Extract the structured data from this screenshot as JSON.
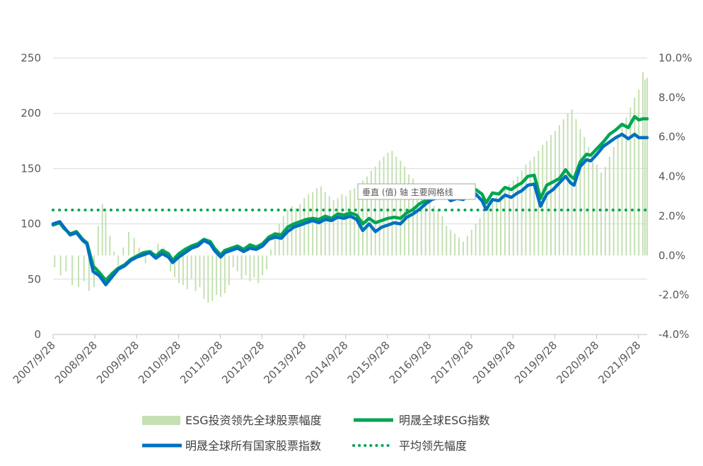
{
  "chart_data": {
    "type": "line",
    "title": "",
    "xlabel": "",
    "ylabel": "",
    "y_left": {
      "min": 0,
      "max": 250,
      "ticks": [
        0,
        50,
        100,
        150,
        200,
        250
      ],
      "tick_labels": [
        "0",
        "50",
        "100",
        "150",
        "200",
        "250"
      ]
    },
    "y_right": {
      "min": -4.0,
      "max": 10.0,
      "ticks": [
        -4,
        -2,
        0,
        2,
        4,
        6,
        8,
        10
      ],
      "tick_labels": [
        "-4.0%",
        "-2.0%",
        "0.0%",
        "2.0%",
        "4.0%",
        "6.0%",
        "8.0%",
        "10.0%"
      ]
    },
    "x_tick_labels": [
      "2007/9/28",
      "2008/9/28",
      "2009/9/28",
      "2010/9/28",
      "2011/9/28",
      "2012/9/28",
      "2013/9/28",
      "2014/9/28",
      "2015/9/28",
      "2016/9/28",
      "2017/9/28",
      "2018/9/28",
      "2019/9/28",
      "2020/9/28",
      "2021/9/28"
    ],
    "x_tick_years": [
      2007.74,
      2008.74,
      2009.74,
      2010.74,
      2011.74,
      2012.74,
      2013.74,
      2014.74,
      2015.74,
      2016.74,
      2017.74,
      2018.74,
      2019.74,
      2020.74,
      2021.74
    ],
    "x_range": [
      2007.74,
      2021.95
    ],
    "grid": true,
    "legend_position": "bottom",
    "colors": {
      "esg": "#00a651",
      "all": "#0070c0",
      "bars": "#c5e0b4",
      "avg": "#00a651",
      "grid": "#d9d9d9",
      "axis": "#bfbfbf"
    },
    "esg_index": {
      "name": "明晟全球ESG指数",
      "x": [
        2007.74,
        2007.9,
        2008.0,
        2008.15,
        2008.3,
        2008.45,
        2008.55,
        2008.7,
        2008.85,
        2009.0,
        2009.15,
        2009.3,
        2009.45,
        2009.6,
        2009.75,
        2009.9,
        2010.05,
        2010.2,
        2010.35,
        2010.5,
        2010.6,
        2010.75,
        2010.9,
        2011.05,
        2011.2,
        2011.35,
        2011.5,
        2011.6,
        2011.75,
        2011.85,
        2012.0,
        2012.15,
        2012.3,
        2012.45,
        2012.6,
        2012.75,
        2012.9,
        2013.05,
        2013.2,
        2013.35,
        2013.5,
        2013.65,
        2013.8,
        2013.95,
        2014.1,
        2014.25,
        2014.4,
        2014.55,
        2014.7,
        2014.85,
        2015.0,
        2015.15,
        2015.3,
        2015.45,
        2015.6,
        2015.75,
        2015.9,
        2016.05,
        2016.2,
        2016.35,
        2016.5,
        2016.65,
        2016.8,
        2016.95,
        2017.1,
        2017.25,
        2017.4,
        2017.55,
        2017.7,
        2017.85,
        2018.0,
        2018.1,
        2018.25,
        2018.4,
        2018.55,
        2018.7,
        2018.85,
        2018.95,
        2019.1,
        2019.25,
        2019.4,
        2019.55,
        2019.7,
        2019.85,
        2020.0,
        2020.12,
        2020.2,
        2020.35,
        2020.5,
        2020.6,
        2020.75,
        2020.9,
        2021.05,
        2021.2,
        2021.35,
        2021.5,
        2021.65,
        2021.75,
        2021.85,
        2021.95
      ],
      "values": [
        99,
        101,
        96,
        91,
        93,
        86,
        83,
        62,
        56,
        49,
        55,
        60,
        63,
        68,
        71,
        74,
        75,
        71,
        76,
        73,
        67,
        73,
        77,
        80,
        82,
        86,
        84,
        78,
        72,
        76,
        78,
        80,
        77,
        81,
        79,
        82,
        88,
        91,
        90,
        97,
        100,
        102,
        104,
        105,
        104,
        107,
        105,
        109,
        108,
        110,
        108,
        100,
        105,
        101,
        103,
        105,
        106,
        105,
        110,
        113,
        118,
        121,
        126,
        128,
        131,
        125,
        127,
        126,
        130,
        131,
        127,
        119,
        128,
        127,
        133,
        131,
        135,
        137,
        143,
        144,
        123,
        135,
        138,
        141,
        149,
        143,
        141,
        156,
        163,
        162,
        168,
        174,
        181,
        185,
        190,
        187,
        197,
        194,
        195,
        195
      ]
    },
    "all_country_index": {
      "name": "明晟全球所有国家股票指数",
      "x": [
        2007.74,
        2007.9,
        2008.0,
        2008.15,
        2008.3,
        2008.45,
        2008.55,
        2008.7,
        2008.85,
        2009.0,
        2009.15,
        2009.3,
        2009.45,
        2009.6,
        2009.75,
        2009.9,
        2010.05,
        2010.2,
        2010.35,
        2010.5,
        2010.6,
        2010.75,
        2010.9,
        2011.05,
        2011.2,
        2011.35,
        2011.5,
        2011.6,
        2011.75,
        2011.85,
        2012.0,
        2012.15,
        2012.3,
        2012.45,
        2012.6,
        2012.75,
        2012.9,
        2013.05,
        2013.2,
        2013.35,
        2013.5,
        2013.65,
        2013.8,
        2013.95,
        2014.1,
        2014.25,
        2014.4,
        2014.55,
        2014.7,
        2014.85,
        2015.0,
        2015.15,
        2015.3,
        2015.45,
        2015.6,
        2015.75,
        2015.9,
        2016.05,
        2016.2,
        2016.35,
        2016.5,
        2016.65,
        2016.8,
        2016.95,
        2017.1,
        2017.25,
        2017.4,
        2017.55,
        2017.7,
        2017.85,
        2018.0,
        2018.1,
        2018.25,
        2018.4,
        2018.55,
        2018.7,
        2018.85,
        2018.95,
        2019.1,
        2019.25,
        2019.4,
        2019.55,
        2019.7,
        2019.85,
        2020.0,
        2020.12,
        2020.2,
        2020.35,
        2020.5,
        2020.6,
        2020.75,
        2020.9,
        2021.05,
        2021.2,
        2021.35,
        2021.5,
        2021.65,
        2021.75,
        2021.85,
        2021.95
      ],
      "values": [
        100,
        102,
        97,
        90,
        92,
        85,
        82,
        57,
        53,
        45,
        52,
        59,
        62,
        67,
        70,
        72,
        74,
        69,
        73,
        70,
        65,
        70,
        74,
        78,
        80,
        85,
        82,
        76,
        70,
        74,
        76,
        78,
        75,
        78,
        77,
        80,
        86,
        88,
        87,
        93,
        97,
        99,
        101,
        103,
        101,
        104,
        103,
        106,
        105,
        107,
        104,
        94,
        100,
        93,
        97,
        99,
        101,
        100,
        106,
        109,
        113,
        118,
        122,
        124,
        127,
        121,
        123,
        122,
        126,
        127,
        121,
        113,
        122,
        121,
        126,
        124,
        128,
        130,
        135,
        136,
        116,
        127,
        131,
        137,
        143,
        137,
        135,
        152,
        158,
        157,
        163,
        170,
        174,
        178,
        181,
        177,
        181,
        178,
        178,
        178
      ]
    },
    "avg_lead": {
      "name": "平均领先幅度",
      "value": 2.3
    },
    "lead_bars": {
      "name": "ESG投资领先全球股票幅度",
      "x": [
        2007.78,
        2007.92,
        2008.05,
        2008.2,
        2008.35,
        2008.48,
        2008.6,
        2008.72,
        2008.82,
        2008.92,
        2009.0,
        2009.1,
        2009.2,
        2009.3,
        2009.42,
        2009.55,
        2009.68,
        2009.8,
        2009.95,
        2010.1,
        2010.25,
        2010.4,
        2010.55,
        2010.65,
        2010.75,
        2010.85,
        2010.95,
        2011.05,
        2011.15,
        2011.25,
        2011.35,
        2011.45,
        2011.55,
        2011.65,
        2011.75,
        2011.85,
        2011.95,
        2012.05,
        2012.15,
        2012.25,
        2012.35,
        2012.45,
        2012.55,
        2012.65,
        2012.75,
        2012.85,
        2012.95,
        2013.05,
        2013.15,
        2013.25,
        2013.35,
        2013.45,
        2013.55,
        2013.65,
        2013.75,
        2013.85,
        2013.95,
        2014.05,
        2014.15,
        2014.25,
        2014.35,
        2014.45,
        2014.55,
        2014.65,
        2014.75,
        2014.85,
        2014.95,
        2015.05,
        2015.15,
        2015.25,
        2015.35,
        2015.45,
        2015.55,
        2015.65,
        2015.75,
        2015.85,
        2015.95,
        2016.05,
        2016.15,
        2016.25,
        2016.35,
        2016.45,
        2016.55,
        2016.65,
        2016.75,
        2016.85,
        2016.95,
        2017.05,
        2017.15,
        2017.25,
        2017.35,
        2017.45,
        2017.55,
        2017.65,
        2017.75,
        2017.85,
        2017.95,
        2018.05,
        2018.15,
        2018.25,
        2018.35,
        2018.45,
        2018.55,
        2018.65,
        2018.75,
        2018.85,
        2018.95,
        2019.05,
        2019.15,
        2019.25,
        2019.35,
        2019.45,
        2019.55,
        2019.65,
        2019.75,
        2019.85,
        2019.95,
        2020.05,
        2020.15,
        2020.25,
        2020.35,
        2020.45,
        2020.55,
        2020.65,
        2020.75,
        2020.85,
        2020.95,
        2021.05,
        2021.15,
        2021.25,
        2021.35,
        2021.45,
        2021.55,
        2021.65,
        2021.75,
        2021.85,
        2021.9,
        2021.95
      ],
      "values": [
        -0.6,
        -1.0,
        -0.8,
        -1.5,
        -1.6,
        -1.3,
        -1.8,
        -1.6,
        1.5,
        2.6,
        2.2,
        1.0,
        0.2,
        -0.5,
        0.4,
        1.2,
        0.9,
        0.4,
        -0.4,
        0.3,
        0.6,
        0.4,
        -0.8,
        -1.1,
        -1.4,
        -1.5,
        -1.7,
        -1.2,
        -1.8,
        -1.6,
        -2.2,
        -2.4,
        -2.3,
        -2.0,
        -2.1,
        -1.9,
        -1.5,
        -0.6,
        -0.8,
        -1.2,
        -1.0,
        -1.3,
        -1.1,
        -1.4,
        -1.0,
        -0.7,
        0.3,
        1.2,
        1.6,
        2.0,
        2.3,
        2.5,
        2.4,
        2.6,
        2.9,
        3.1,
        3.2,
        3.4,
        3.5,
        3.2,
        3.0,
        2.8,
        2.9,
        3.1,
        3.0,
        3.3,
        3.4,
        3.6,
        3.8,
        4.0,
        4.3,
        4.5,
        4.8,
        5.0,
        5.2,
        5.3,
        5.0,
        4.8,
        4.5,
        4.1,
        3.9,
        3.6,
        3.3,
        3.0,
        2.7,
        2.5,
        2.3,
        2.0,
        1.5,
        1.3,
        1.1,
        0.9,
        0.7,
        1.0,
        1.3,
        1.6,
        1.9,
        2.2,
        2.5,
        2.8,
        3.0,
        3.2,
        3.4,
        3.6,
        3.8,
        4.0,
        4.3,
        4.6,
        4.8,
        5.0,
        5.3,
        5.6,
        5.8,
        6.1,
        6.3,
        6.6,
        6.9,
        7.2,
        7.4,
        6.9,
        6.4,
        6.0,
        5.5,
        5.0,
        4.6,
        4.2,
        4.5,
        5.0,
        5.5,
        6.0,
        6.5,
        7.0,
        7.5,
        8.0,
        8.4,
        9.3,
        8.9,
        9.0
      ]
    },
    "legend": [
      {
        "label": "ESG投资领先全球股票幅度",
        "kind": "bar",
        "color": "#c5e0b4"
      },
      {
        "label": "明晟全球ESG指数",
        "kind": "line",
        "color": "#00a651"
      },
      {
        "label": "明晟全球所有国家股票指数",
        "kind": "line",
        "color": "#0070c0"
      },
      {
        "label": "平均领先幅度",
        "kind": "dotted",
        "color": "#00a651"
      }
    ]
  },
  "tooltip": {
    "text": "垂直 (值) 轴 主要网格线"
  }
}
